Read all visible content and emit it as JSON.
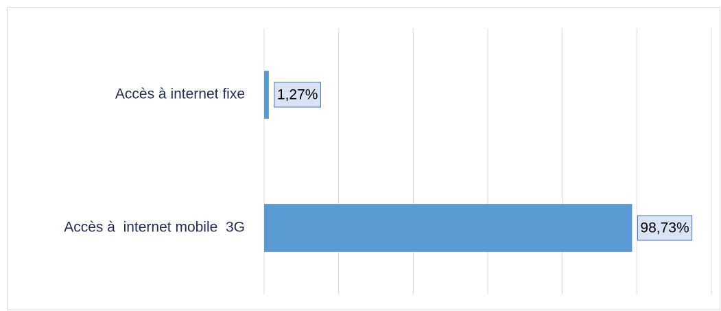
{
  "chart_data": {
    "type": "barh",
    "categories": [
      "Accès à internet fixe",
      "Accès à  internet mobile  3G"
    ],
    "values": [
      1.27,
      98.73
    ],
    "value_labels": [
      "1,27%",
      "98,73%"
    ],
    "color": "#5b9bd5",
    "xlim": [
      0,
      120
    ],
    "xticks": [
      0,
      20,
      40,
      60,
      80,
      100,
      120
    ],
    "grid": true
  }
}
